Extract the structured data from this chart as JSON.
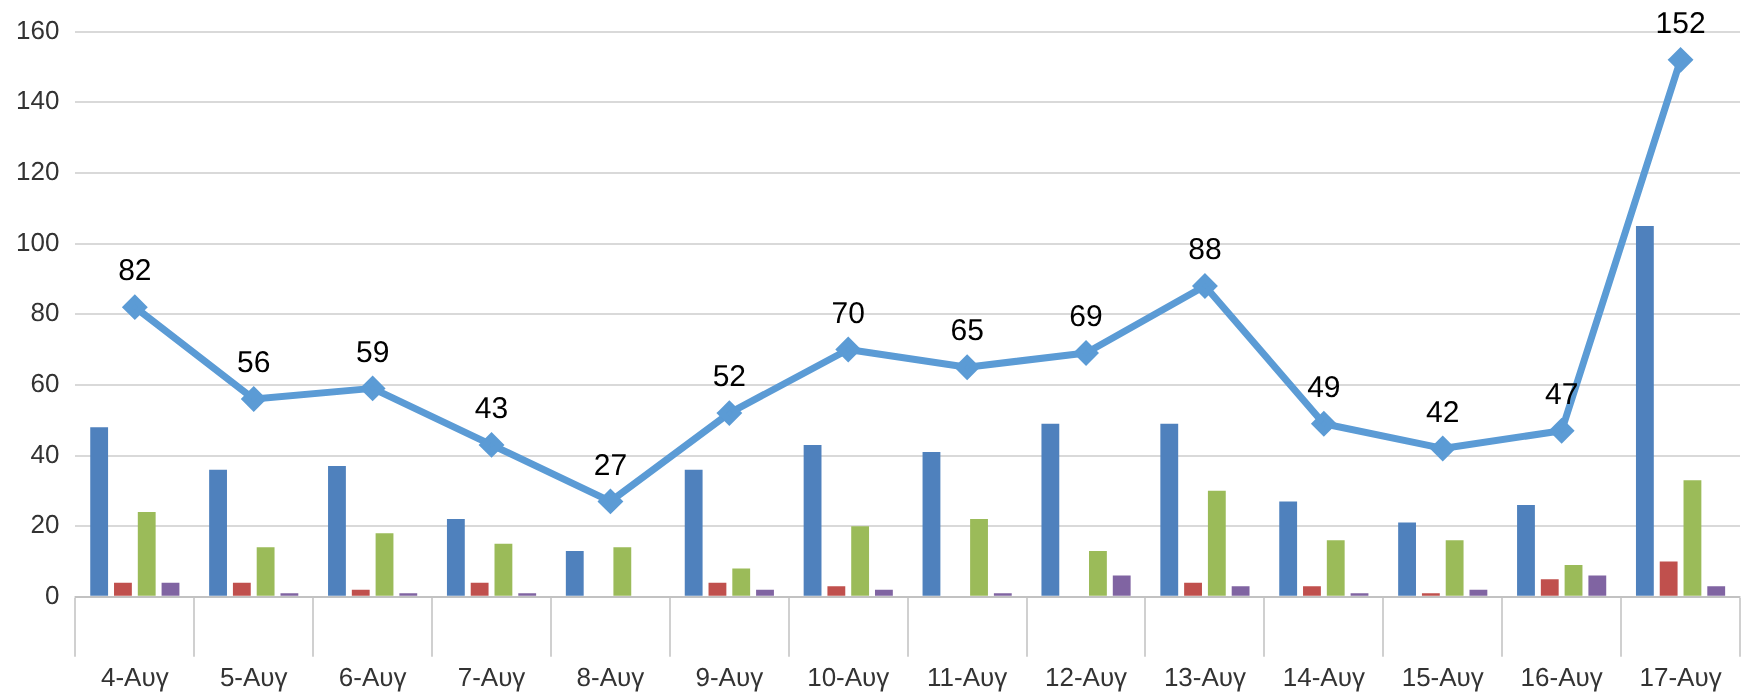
{
  "chart_data": {
    "type": "bar",
    "categories": [
      "4-Αυγ",
      "5-Αυγ",
      "6-Αυγ",
      "7-Αυγ",
      "8-Αυγ",
      "9-Αυγ",
      "10-Αυγ",
      "11-Αυγ",
      "12-Αυγ",
      "13-Αυγ",
      "14-Αυγ",
      "15-Αυγ",
      "16-Αυγ",
      "17-Αυγ"
    ],
    "series": [
      {
        "color": "#4f81bd",
        "values": [
          48,
          36,
          37,
          22,
          13,
          36,
          43,
          41,
          49,
          49,
          27,
          21,
          26,
          105
        ]
      },
      {
        "color": "#c0504d",
        "values": [
          4,
          4,
          2,
          4,
          0,
          4,
          3,
          0,
          0,
          4,
          3,
          1,
          5,
          10
        ]
      },
      {
        "color": "#9bbb59",
        "values": [
          24,
          14,
          18,
          15,
          14,
          8,
          20,
          22,
          13,
          30,
          16,
          16,
          9,
          33
        ]
      },
      {
        "color": "#8064a2",
        "values": [
          4,
          1,
          1,
          1,
          0,
          2,
          2,
          1,
          6,
          3,
          1,
          2,
          6,
          3
        ]
      },
      {
        "type": "line",
        "color": "#5b9bd5",
        "marker": "diamond",
        "values": [
          82,
          56,
          59,
          43,
          27,
          52,
          70,
          65,
          69,
          88,
          49,
          42,
          47,
          152
        ],
        "value_labels": [
          "82",
          "56",
          "59",
          "43",
          "27",
          "52",
          "70",
          "65",
          "69",
          "88",
          "49",
          "42",
          "47",
          "152"
        ]
      }
    ],
    "ylim": [
      0,
      160
    ],
    "yticks": [
      0,
      20,
      40,
      60,
      80,
      100,
      120,
      140,
      160
    ],
    "grid": "y",
    "legend": false
  }
}
